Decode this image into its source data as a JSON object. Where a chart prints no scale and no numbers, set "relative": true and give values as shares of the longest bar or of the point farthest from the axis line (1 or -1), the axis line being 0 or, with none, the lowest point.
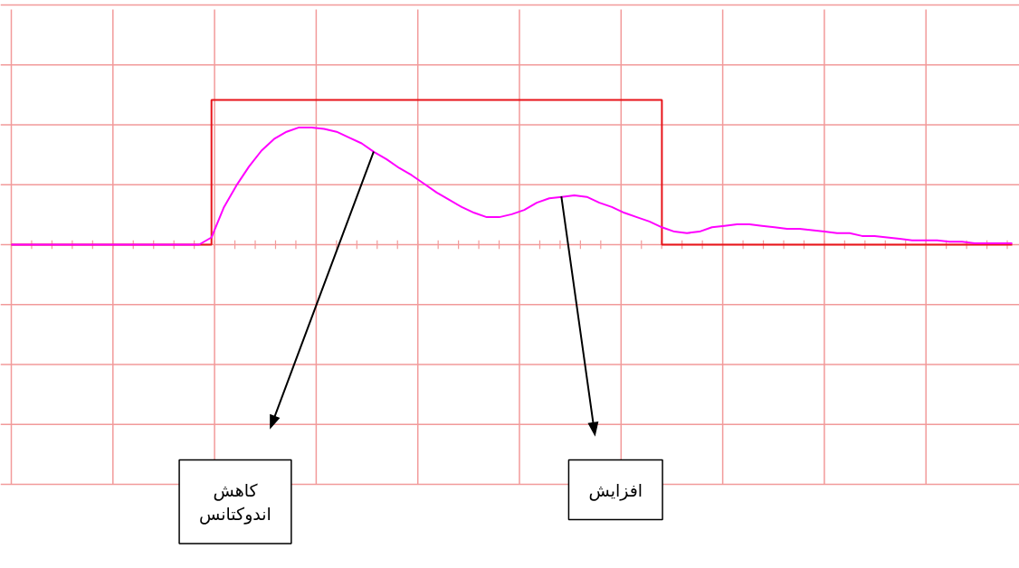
{
  "chart_data": {
    "type": "line",
    "relative": true,
    "grid": true,
    "categories": [
      null,
      null,
      null,
      null,
      null,
      null,
      null,
      null,
      null,
      null,
      null,
      null,
      null,
      null,
      null,
      null,
      null,
      null,
      null,
      null,
      null,
      null,
      null,
      null,
      null,
      null,
      null,
      null,
      null,
      null,
      null,
      null,
      null,
      null,
      null,
      null,
      null,
      null,
      null,
      null,
      null,
      null,
      null,
      null,
      null,
      null,
      null,
      null,
      null,
      null,
      null,
      null,
      null,
      null,
      null,
      null,
      null,
      null,
      null,
      null,
      null,
      null,
      null,
      null,
      null,
      null,
      null,
      null,
      null,
      null,
      null,
      null,
      null,
      null,
      null,
      null,
      null,
      null,
      null,
      null,
      null
    ],
    "series": [
      {
        "type": "step",
        "color": "#e8141a",
        "values": [
          0,
          0,
          0,
          0,
          0,
          0,
          0,
          0,
          0,
          0,
          0,
          0,
          0,
          0,
          0,
          0,
          1,
          1,
          1,
          1,
          1,
          1,
          1,
          1,
          1,
          1,
          1,
          1,
          1,
          1,
          1,
          1,
          1,
          1,
          1,
          1,
          1,
          1,
          1,
          1,
          1,
          1,
          1,
          1,
          1,
          1,
          1,
          1,
          1,
          1,
          1,
          1,
          0,
          0,
          0,
          0,
          0,
          0,
          0,
          0,
          0,
          0,
          0,
          0,
          0,
          0,
          0,
          0,
          0,
          0,
          0,
          0,
          0,
          0,
          0,
          0,
          0,
          0,
          0,
          0,
          0
        ]
      },
      {
        "color": "#ff00ff",
        "values": [
          0,
          0,
          0,
          0,
          0,
          0,
          0,
          0,
          0,
          0,
          0,
          0,
          0,
          0,
          0,
          0,
          0.05,
          0.26,
          0.41,
          0.54,
          0.65,
          0.73,
          0.78,
          0.81,
          0.81,
          0.8,
          0.78,
          0.74,
          0.7,
          0.64,
          0.59,
          0.53,
          0.48,
          0.42,
          0.36,
          0.31,
          0.26,
          0.22,
          0.19,
          0.19,
          0.21,
          0.24,
          0.29,
          0.32,
          0.33,
          0.34,
          0.33,
          0.29,
          0.26,
          0.22,
          0.19,
          0.16,
          0.12,
          0.09,
          0.08,
          0.09,
          0.12,
          0.13,
          0.14,
          0.14,
          0.13,
          0.12,
          0.11,
          0.11,
          0.1,
          0.09,
          0.08,
          0.08,
          0.06,
          0.06,
          0.05,
          0.04,
          0.03,
          0.03,
          0.03,
          0.02,
          0.02,
          0.01,
          0.01,
          0.01,
          0.01
        ]
      }
    ],
    "annotations": [
      "کاهش\nاندوکتانس",
      "افزایش"
    ]
  }
}
